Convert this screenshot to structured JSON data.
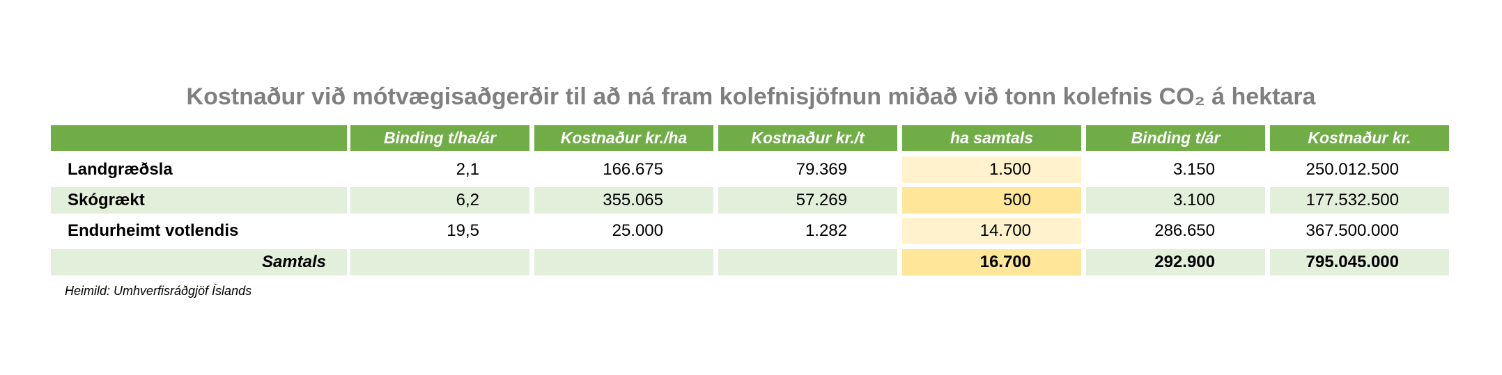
{
  "title": "Kostnaður við mótvægisaðgerðir til að ná fram kolefnisjöfnun miðað við tonn kolefnis CO₂ á hektara",
  "table": {
    "header": [
      "Binding t/ha/ár",
      "Kostnaður kr./ha",
      "Kostnaður kr./t",
      "ha samtals",
      "Binding t/ár",
      "Kostnaður kr."
    ],
    "rows": [
      {
        "label": "Landgræðsla",
        "cells": [
          "2,1",
          "166.675",
          "79.369",
          "1.500",
          "3.150",
          "250.012.500"
        ]
      },
      {
        "label": "Skógrækt",
        "cells": [
          "6,2",
          "355.065",
          "57.269",
          "500",
          "3.100",
          "177.532.500"
        ]
      },
      {
        "label": "Endurheimt votlendis",
        "cells": [
          "19,5",
          "25.000",
          "1.282",
          "14.700",
          "286.650",
          "367.500.000"
        ]
      }
    ],
    "total": {
      "label": "Samtals",
      "cells": [
        "16.700",
        "292.900",
        "795.045.000"
      ]
    }
  },
  "source": "Heimild: Umhverfisráðgjöf Íslands"
}
